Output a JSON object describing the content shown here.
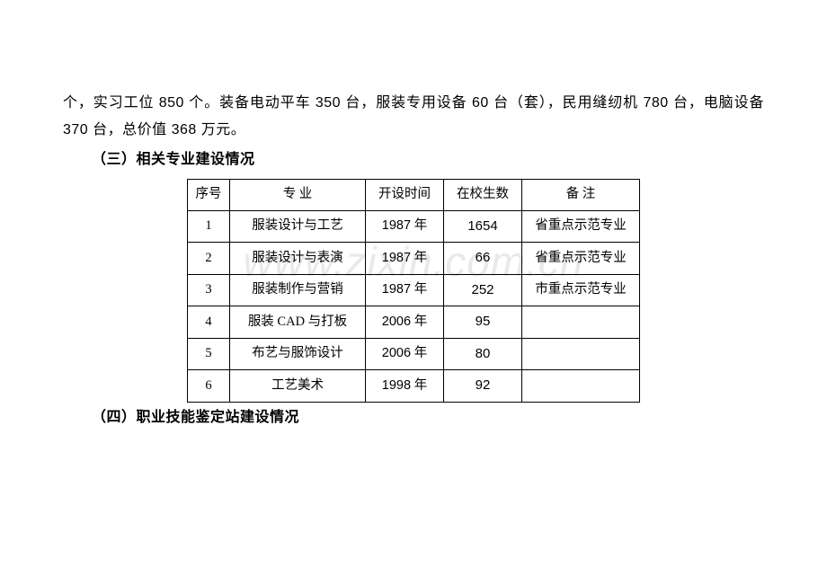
{
  "watermark": "www.zixin.com.cn",
  "paragraph": {
    "part1": "个，实习工位",
    "n1": " 850 ",
    "part2": "个。装备电动平车",
    "n2": " 350 ",
    "part3": "台，服装专用设备",
    "n3": " 60 ",
    "part4": "台（套），民用缝纫机",
    "n4": " 780 ",
    "part5": "台，电脑设备",
    "n5": " 370 ",
    "part6": "台，总价值",
    "n6": " 368 ",
    "part7": "万元。"
  },
  "heading3": "（三）相关专业建设情况",
  "heading4": "（四）职业技能鉴定站建设情况",
  "table": {
    "headers": {
      "idx": "序号",
      "major": "专  业",
      "year": "开设时间",
      "count": "在校生数",
      "note": "备  注"
    },
    "rows": [
      {
        "idx": "1",
        "major": "服装设计与工艺",
        "year_num": "1987",
        "year_suffix": " 年",
        "count": "1654",
        "note": "省重点示范专业"
      },
      {
        "idx": "2",
        "major": "服装设计与表演",
        "year_num": "1987",
        "year_suffix": " 年",
        "count": "66",
        "note": "省重点示范专业"
      },
      {
        "idx": "3",
        "major": "服装制作与营销",
        "year_num": "1987",
        "year_suffix": " 年",
        "count": "252",
        "note": "市重点示范专业"
      },
      {
        "idx": "4",
        "major": "服装 CAD 与打板",
        "year_num": "2006",
        "year_suffix": " 年",
        "count": "95",
        "note": ""
      },
      {
        "idx": "5",
        "major": "布艺与服饰设计",
        "year_num": "2006",
        "year_suffix": " 年",
        "count": "80",
        "note": ""
      },
      {
        "idx": "6",
        "major": "工艺美术",
        "year_num": "1998",
        "year_suffix": " 年",
        "count": "92",
        "note": ""
      }
    ]
  }
}
